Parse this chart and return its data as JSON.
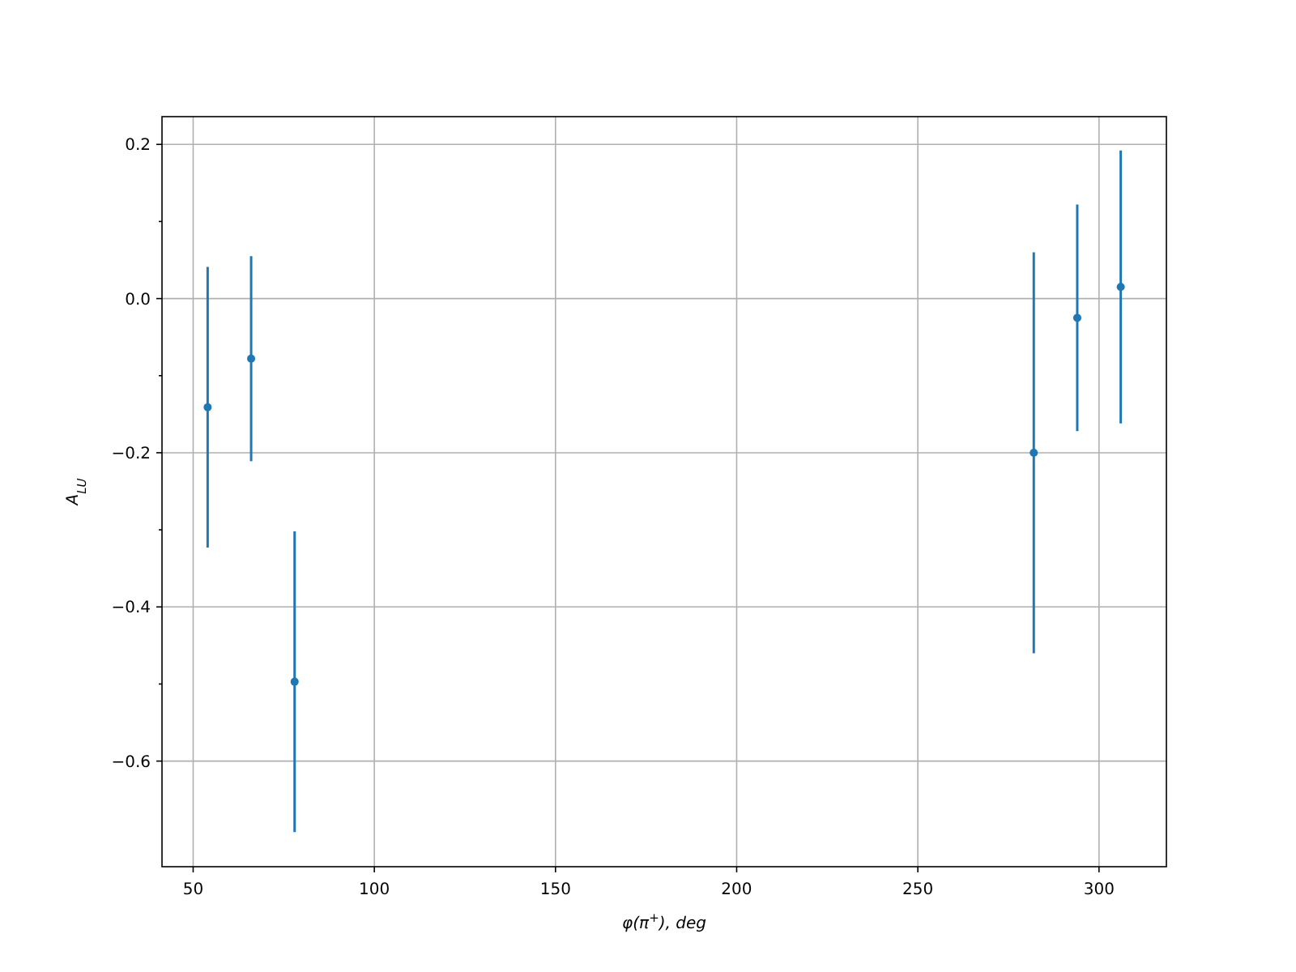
{
  "chart_data": {
    "type": "scatter",
    "xlabel": "φ(π$^{+}$), deg",
    "ylabel": "A$_{LU}$",
    "x": [
      54,
      66,
      78,
      282,
      294,
      306
    ],
    "series": [
      {
        "color": "#1f77b4",
        "values": [
          -0.141,
          -0.078,
          -0.497,
          -0.2,
          -0.025,
          0.015
        ],
        "errors": [
          0.182,
          0.133,
          0.195,
          0.26,
          0.147,
          0.177
        ]
      }
    ],
    "xlim": [
      41.4,
      318.6
    ],
    "xticks": [
      50,
      100,
      150,
      200,
      250,
      300
    ],
    "ylim": [
      -0.737,
      0.236
    ],
    "yticks": [
      -0.6,
      {
        "value": -0.5,
        "label": null
      },
      -0.4,
      {
        "value": -0.3,
        "label": null
      },
      -0.2,
      {
        "value": -0.1,
        "label": null
      },
      {
        "value": 0,
        "label": "0.0"
      },
      {
        "value": 0.1,
        "label": null
      },
      0.2
    ],
    "grid": true,
    "marker": "circle"
  }
}
